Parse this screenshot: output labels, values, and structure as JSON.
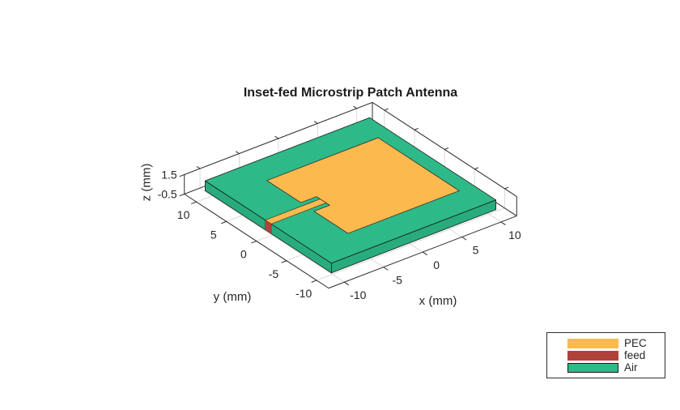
{
  "figure": {
    "background": "#ffffff"
  },
  "chart_data": {
    "type": "3d-cad-view",
    "title": "Inset-fed Microstrip Patch Antenna",
    "view": {
      "azimuth": -37.5,
      "elevation": 30,
      "projection": "orthographic"
    },
    "axes": {
      "x": {
        "label": "x (mm)",
        "ticks": [
          -10,
          -5,
          0,
          5,
          10
        ],
        "lim": [
          -12,
          12
        ]
      },
      "y": {
        "label": "y (mm)",
        "ticks": [
          -10,
          -5,
          0,
          5,
          10
        ],
        "lim": [
          -12,
          12
        ]
      },
      "z": {
        "label": "z (mm)",
        "ticks": [
          -0.5,
          1.5
        ],
        "lim": [
          -0.5,
          1.5
        ]
      }
    },
    "grid": {
      "on": true,
      "color": "#d9d9d9"
    },
    "edge_color": "#2b2b2b",
    "tick_label_color": "#262626",
    "objects": {
      "substrate": {
        "material": "Air",
        "x": [
          -10.5,
          10.5
        ],
        "y": [
          -10.5,
          10.5
        ],
        "z": [
          0,
          1
        ],
        "top_color": "#2EB988",
        "side_color": "#28AC7D",
        "outline": "#1a1a1a"
      },
      "patch": {
        "material": "PEC",
        "x": [
          -5.5,
          8.7
        ],
        "y": [
          -6.75,
          6.75
        ],
        "z": 1,
        "color": "#FBB94E",
        "outline": "#222222",
        "notch": {
          "x": [
            -5.5,
            -3.5
          ],
          "y": [
            -1.1,
            1.1
          ]
        }
      },
      "feed_line": {
        "material": "PEC",
        "x": [
          -10.5,
          -3.5
        ],
        "y": [
          -0.5,
          0.5
        ],
        "z": 1,
        "color": "#FBB94E",
        "outline": "#222222"
      },
      "feed_port": {
        "material": "feed",
        "x": -10.5,
        "y": [
          -0.5,
          0.5
        ],
        "z": [
          0,
          1
        ],
        "color": "#B3413B",
        "outline": "#7e2b27"
      }
    }
  },
  "legend": {
    "entries": [
      {
        "label": "PEC",
        "color": "#FBB94E",
        "border": false
      },
      {
        "label": "feed",
        "color": "#B3413B",
        "border": false
      },
      {
        "label": "Air",
        "color": "#2EB988",
        "border": true
      }
    ]
  }
}
